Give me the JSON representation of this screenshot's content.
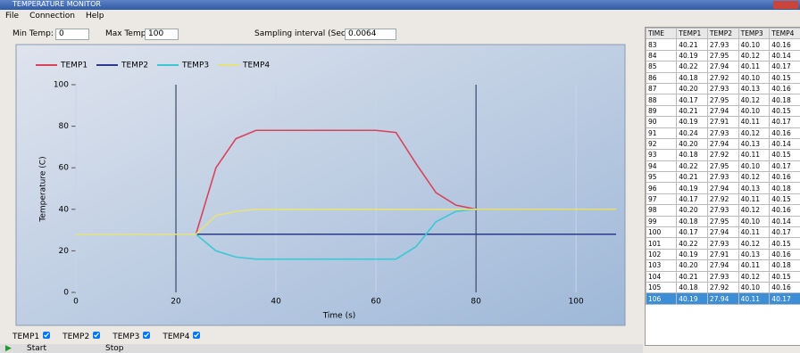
{
  "window": {
    "title": "TEMPERATURE MONITOR",
    "menu": [
      "File",
      "Connection",
      "Help"
    ]
  },
  "toolbar": {
    "min_temp_label": "Min Temp:",
    "min_temp": "0",
    "max_temp_label": "Max Temp:",
    "max_temp": "100",
    "interval_label": "Sampling interval (Seconds)",
    "interval": "0.0064"
  },
  "chart_data": {
    "type": "line",
    "x_label": "Time (s)",
    "y_label": "Temperature (C)",
    "x": [
      0,
      4,
      8,
      12,
      16,
      20,
      24,
      28,
      32,
      36,
      40,
      44,
      48,
      52,
      56,
      60,
      64,
      68,
      72,
      76,
      80,
      84,
      88,
      92,
      96,
      100,
      104,
      108
    ],
    "series": [
      {
        "name": "TEMP1",
        "color": "#d9435a",
        "values": [
          28,
          28,
          28,
          28,
          28,
          28,
          28,
          60,
          74,
          78,
          78,
          78,
          78,
          78,
          78,
          78,
          77,
          62,
          48,
          42,
          40,
          40,
          40,
          40,
          40,
          40,
          40,
          40
        ]
      },
      {
        "name": "TEMP2",
        "color": "#2b3a8c",
        "values": [
          28,
          28,
          28,
          28,
          28,
          28,
          28,
          28,
          28,
          28,
          28,
          28,
          28,
          28,
          28,
          28,
          28,
          28,
          28,
          28,
          28,
          28,
          28,
          28,
          28,
          28,
          28,
          28
        ]
      },
      {
        "name": "TEMP3",
        "color": "#3cc7d6",
        "values": [
          28,
          28,
          28,
          28,
          28,
          28,
          28,
          20,
          17,
          16,
          16,
          16,
          16,
          16,
          16,
          16,
          16,
          22,
          34,
          39,
          40,
          40,
          40,
          40,
          40,
          40,
          40,
          40
        ]
      },
      {
        "name": "TEMP4",
        "color": "#e6e27a",
        "values": [
          28,
          28,
          28,
          28,
          28,
          28,
          28,
          37,
          39,
          40,
          40,
          40,
          40,
          40,
          40,
          40,
          40,
          40,
          40,
          40,
          40,
          40,
          40,
          40,
          40,
          40,
          40,
          40
        ]
      }
    ],
    "xlim": [
      0,
      108
    ],
    "ylim": [
      0,
      100
    ],
    "xticks": [
      0,
      20,
      40,
      60,
      80,
      100
    ],
    "yticks": [
      0,
      20,
      40,
      60,
      80,
      100
    ],
    "cursors": [
      20,
      80
    ],
    "grid": true,
    "legend": "top-left"
  },
  "series_toggles": [
    "TEMP1",
    "TEMP2",
    "TEMP3",
    "TEMP4"
  ],
  "table": {
    "columns": [
      "TIME",
      "TEMP1",
      "TEMP2",
      "TEMP3",
      "TEMP4"
    ],
    "rows": [
      [
        "83",
        "40.21",
        "27.93",
        "40.10",
        "40.16"
      ],
      [
        "84",
        "40.19",
        "27.95",
        "40.12",
        "40.14"
      ],
      [
        "85",
        "40.22",
        "27.94",
        "40.11",
        "40.17"
      ],
      [
        "86",
        "40.18",
        "27.92",
        "40.10",
        "40.15"
      ],
      [
        "87",
        "40.20",
        "27.93",
        "40.13",
        "40.16"
      ],
      [
        "88",
        "40.17",
        "27.95",
        "40.12",
        "40.18"
      ],
      [
        "89",
        "40.21",
        "27.94",
        "40.10",
        "40.15"
      ],
      [
        "90",
        "40.19",
        "27.91",
        "40.11",
        "40.17"
      ],
      [
        "91",
        "40.24",
        "27.93",
        "40.12",
        "40.16"
      ],
      [
        "92",
        "40.20",
        "27.94",
        "40.13",
        "40.14"
      ],
      [
        "93",
        "40.18",
        "27.92",
        "40.11",
        "40.15"
      ],
      [
        "94",
        "40.22",
        "27.95",
        "40.10",
        "40.17"
      ],
      [
        "95",
        "40.21",
        "27.93",
        "40.12",
        "40.16"
      ],
      [
        "96",
        "40.19",
        "27.94",
        "40.13",
        "40.18"
      ],
      [
        "97",
        "40.17",
        "27.92",
        "40.11",
        "40.15"
      ],
      [
        "98",
        "40.20",
        "27.93",
        "40.12",
        "40.16"
      ],
      [
        "99",
        "40.18",
        "27.95",
        "40.10",
        "40.14"
      ],
      [
        "100",
        "40.17",
        "27.94",
        "40.11",
        "40.17"
      ],
      [
        "101",
        "40.22",
        "27.93",
        "40.12",
        "40.15"
      ],
      [
        "102",
        "40.19",
        "27.91",
        "40.13",
        "40.16"
      ],
      [
        "103",
        "40.20",
        "27.94",
        "40.11",
        "40.18"
      ],
      [
        "104",
        "40.21",
        "27.93",
        "40.12",
        "40.15"
      ],
      [
        "105",
        "40.18",
        "27.92",
        "40.10",
        "40.16"
      ],
      [
        "106",
        "40.19",
        "27.94",
        "40.11",
        "40.17"
      ]
    ]
  },
  "status": {
    "start": "Start",
    "stop": "Stop"
  }
}
